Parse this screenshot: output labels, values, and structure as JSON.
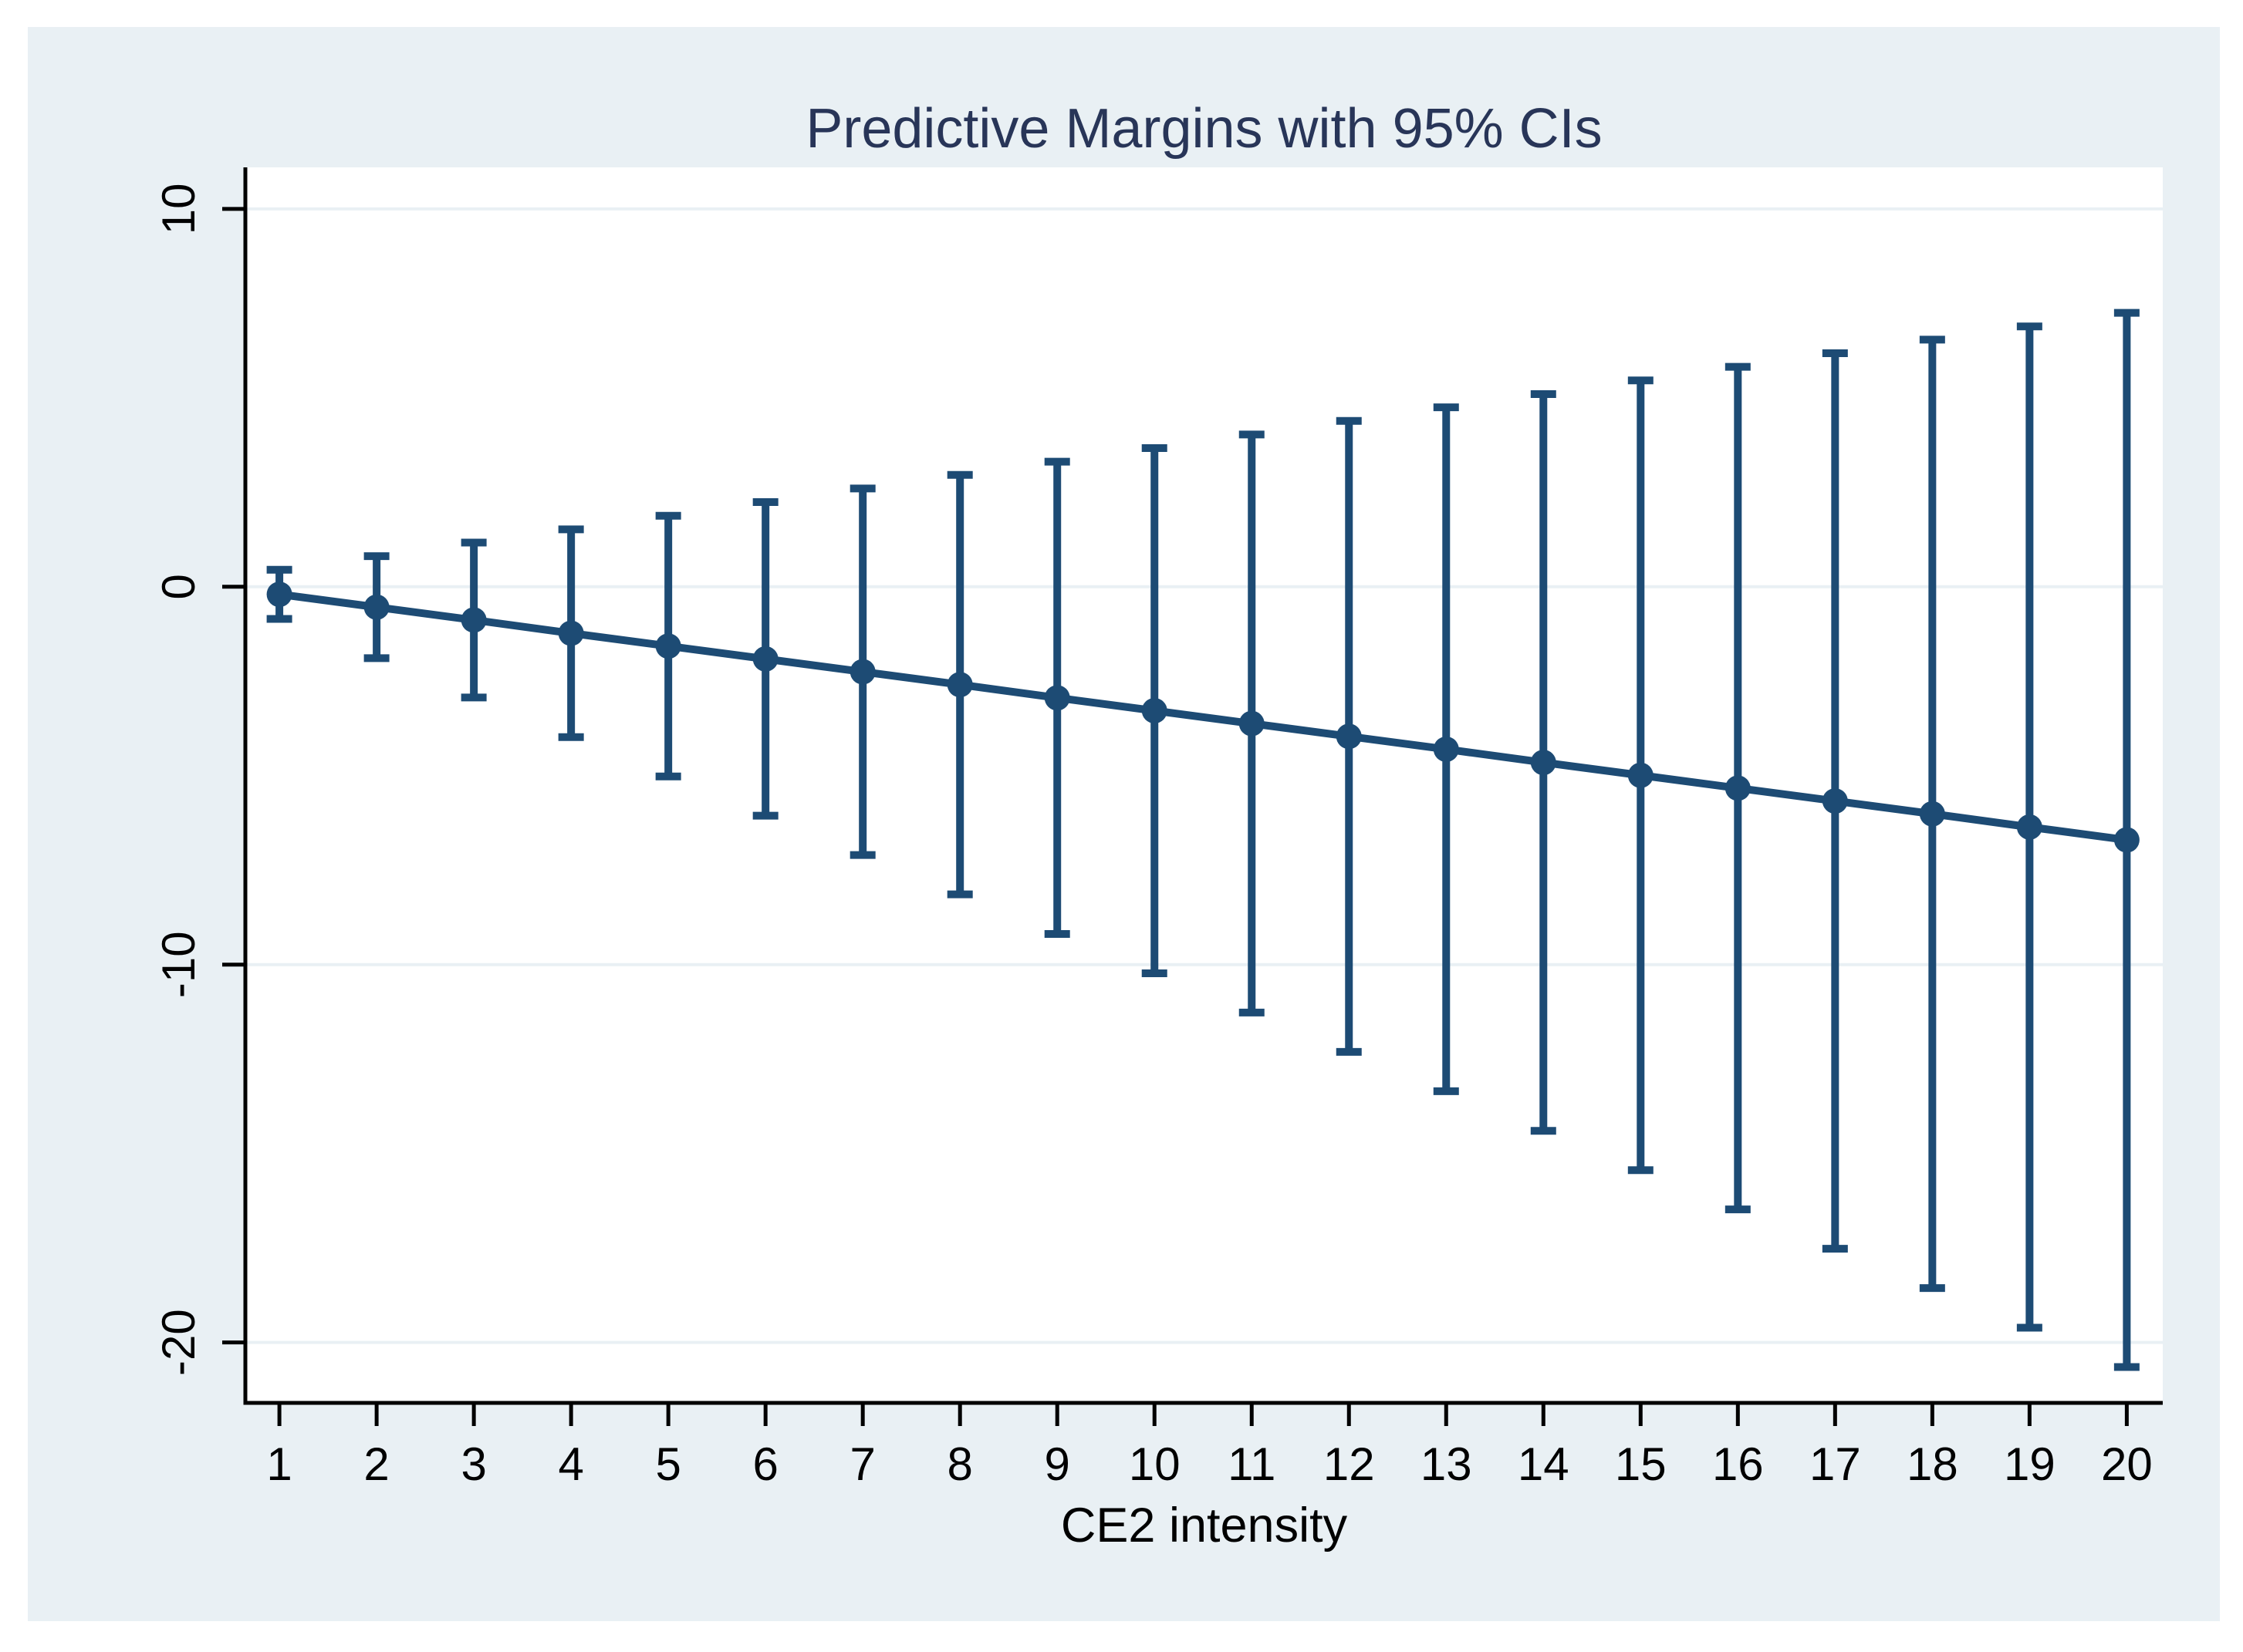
{
  "window": {
    "page_background": "#ffffff",
    "canvas_background": "#e9f0f4"
  },
  "chart_data": {
    "type": "scatter",
    "title": "Predictive Margins with 95% CIs",
    "xlabel": "CE2 intensity",
    "ylabel": "",
    "ci_level": "95%",
    "legend": "none",
    "grid": true,
    "x": [
      1,
      2,
      3,
      4,
      5,
      6,
      7,
      8,
      9,
      10,
      11,
      12,
      13,
      14,
      15,
      16,
      17,
      18,
      19,
      20
    ],
    "x_tick_labels": [
      "1",
      "2",
      "3",
      "4",
      "5",
      "6",
      "7",
      "8",
      "9",
      "10",
      "11",
      "12",
      "13",
      "14",
      "15",
      "16",
      "17",
      "18",
      "19",
      "20"
    ],
    "y_ticks": [
      10,
      0,
      -10,
      -20
    ],
    "y_tick_labels": [
      "10",
      "0",
      "-10",
      "-20"
    ],
    "xlim": [
      0.65,
      20.37
    ],
    "ylim": [
      -21.6,
      11.1
    ],
    "series": [
      {
        "name": "Predictive margin",
        "values": [
          -0.2,
          -0.54,
          -0.88,
          -1.23,
          -1.57,
          -1.91,
          -2.25,
          -2.59,
          -2.94,
          -3.28,
          -3.62,
          -3.96,
          -4.3,
          -4.65,
          -4.99,
          -5.33,
          -5.67,
          -6.01,
          -6.36,
          -6.7
        ],
        "ci_upper": [
          0.45,
          0.81,
          1.17,
          1.52,
          1.88,
          2.24,
          2.6,
          2.96,
          3.31,
          3.67,
          4.03,
          4.39,
          4.75,
          5.1,
          5.46,
          5.82,
          6.18,
          6.54,
          6.89,
          7.25
        ],
        "ci_lower": [
          -0.85,
          -1.89,
          -2.93,
          -3.98,
          -5.02,
          -6.06,
          -7.1,
          -8.14,
          -9.19,
          -10.23,
          -11.27,
          -12.31,
          -13.35,
          -14.4,
          -15.44,
          -16.48,
          -17.52,
          -18.56,
          -19.61,
          -20.65
        ]
      }
    ],
    "colors": {
      "marker": "#1d4b74",
      "line": "#1d4b74",
      "error_bar": "#1d4b74",
      "grid": "#e9f0f4",
      "axis": "#000000",
      "tick_label": "#000000",
      "title": "#283558",
      "plot_background": "#ffffff",
      "canvas_background": "#e9f0f4",
      "page_background": "#ffffff"
    }
  }
}
